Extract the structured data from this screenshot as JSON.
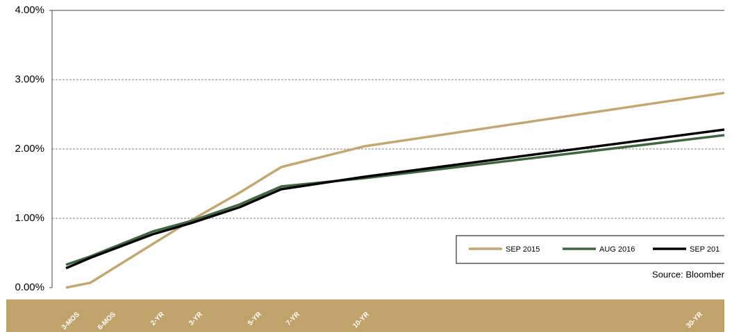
{
  "chart_data": {
    "type": "line",
    "categories": [
      "3-MOS",
      "6-MOS",
      "2-YR",
      "3-YR",
      "5-YR",
      "7-YR",
      "10-YR",
      "30-YR"
    ],
    "series": [
      {
        "name": "SEP 2015",
        "color": "#c4a670",
        "values": [
          0.0,
          0.07,
          0.63,
          0.97,
          1.37,
          1.74,
          2.04,
          2.81
        ]
      },
      {
        "name": "AUG 2016",
        "color": "#3d6641",
        "values": [
          0.33,
          0.45,
          0.81,
          0.96,
          1.2,
          1.46,
          1.58,
          2.2
        ]
      },
      {
        "name": "SEP 201",
        "color": "#000000",
        "values": [
          0.28,
          0.43,
          0.77,
          0.93,
          1.16,
          1.42,
          1.6,
          2.28
        ]
      }
    ],
    "ylim": [
      0,
      4
    ],
    "yticks": [
      {
        "value": 0,
        "label": "0.00%"
      },
      {
        "value": 1,
        "label": "1.00%"
      },
      {
        "value": 2,
        "label": "2.00%"
      },
      {
        "value": 3,
        "label": "3.00%"
      },
      {
        "value": 4,
        "label": "4.00%"
      }
    ],
    "grid": true,
    "legend": "lower-right",
    "source": "Source: Bloomber"
  }
}
